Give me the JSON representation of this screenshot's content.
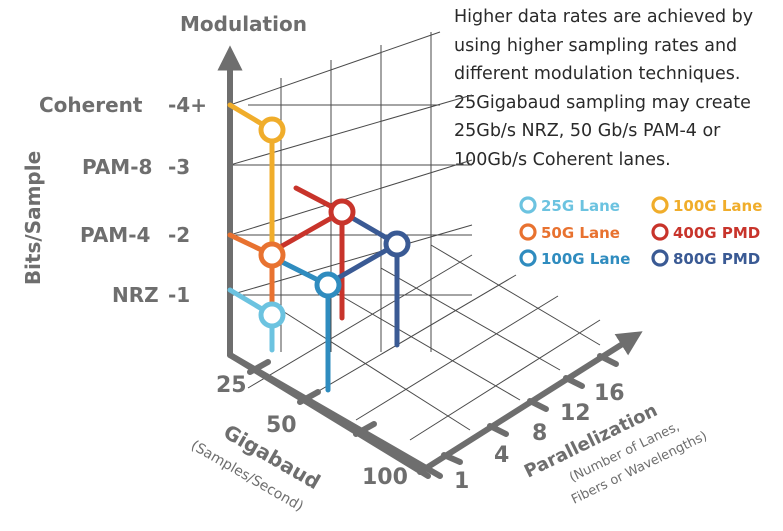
{
  "description": [
    "Higher data rates are achieved by",
    "using higher sampling rates and",
    "different modulation techniques.",
    "25Gigabaud sampling may create",
    "25Gb/s NRZ, 50 Gb/s PAM-4 or",
    "100Gb/s Coherent lanes."
  ],
  "axes": {
    "modulation": {
      "title": "Modulation",
      "side_title": "Bits/Sample",
      "levels": [
        {
          "name": "Coherent",
          "bits": "-4+"
        },
        {
          "name": "PAM-8",
          "bits": "-3"
        },
        {
          "name": "PAM-4",
          "bits": "-2"
        },
        {
          "name": "NRZ",
          "bits": "-1"
        }
      ]
    },
    "gigabaud": {
      "title": "Gigabaud",
      "subtitle": "(Samples/Second)",
      "ticks": [
        "25",
        "50",
        "100"
      ]
    },
    "parallelization": {
      "title": "Parallelization",
      "subtitle_line1": "(Number of Lanes,",
      "subtitle_line2": "Fibers or Wavelengths)",
      "ticks": [
        "1",
        "4",
        "8",
        "12",
        "16"
      ]
    }
  },
  "legend": [
    {
      "label": "25G Lane",
      "color": "#6cc3e0"
    },
    {
      "label": "100G Lane",
      "color": "#f0ad2b"
    },
    {
      "label": "50G Lane",
      "color": "#e87230"
    },
    {
      "label": "400G PMD",
      "color": "#c8342b"
    },
    {
      "label": "100G Lane",
      "color": "#2f8cbf"
    },
    {
      "label": "800G PMD",
      "color": "#3a5a94"
    }
  ],
  "colors": {
    "axis": "#6e6e6e",
    "grid": "#4a4a4a"
  }
}
